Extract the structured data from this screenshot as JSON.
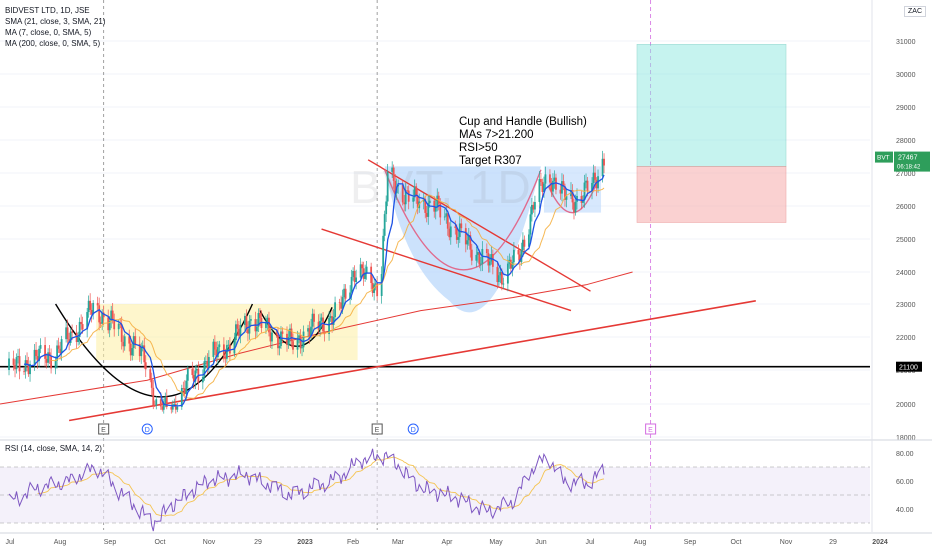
{
  "header": {
    "symbol_line": "BIDVEST LTD, 1D, JSE",
    "currency": "ZAC"
  },
  "indicators": [
    {
      "label": "SMA (21, close, 3, SMA, 21)",
      "color": "#f5b041"
    },
    {
      "label": "MA (7, close, 0, SMA, 5)",
      "color": "#1e53e5"
    },
    {
      "label": "MA (200, close, 0, SMA, 5)",
      "color": "#e53935"
    }
  ],
  "watermark": "BVT, 1D",
  "annotation": {
    "lines": [
      "Cup and Handle (Bullish)",
      "MAs 7>21.200",
      "RSI>50",
      "Target R307"
    ]
  },
  "price_badge": {
    "symbol": "BVT",
    "price": "27467",
    "countdown": "06:18:42"
  },
  "level_badge": "21100",
  "event_markers": [
    {
      "label": "E",
      "kind": "earnings"
    },
    {
      "label": "D",
      "kind": "dividend"
    },
    {
      "label": "E",
      "kind": "earnings"
    },
    {
      "label": "D",
      "kind": "dividend"
    },
    {
      "label": "E",
      "kind": "earnings-future"
    }
  ],
  "rsi_legend": "RSI (14, close, SMA, 14, 2)",
  "colors": {
    "up": "#26a69a",
    "down": "#ef5350",
    "trend": "#e53935",
    "support": "#000000",
    "sma21": "#f5b041",
    "ma7": "#1e53e5",
    "ma200": "#e53935",
    "rsi": "#7e57c2",
    "profit_zone": "#8ee8e0",
    "stop_zone": "#f8b4b4",
    "cup_fill_1": "#fdeea2",
    "cup_fill_2": "#b7d6fb",
    "badge": "#2e9e5b"
  },
  "chart_data": [
    {
      "type": "candlestick",
      "title": "BIDVEST LTD, 1D, JSE",
      "ylim": [
        18000,
        31500
      ],
      "y_ticks": [
        18000,
        20000,
        21000,
        22000,
        23000,
        24000,
        25000,
        26000,
        27000,
        28000,
        29000,
        30000,
        31000
      ],
      "y_tick_labels": [
        "18000",
        "20000",
        "21000",
        "22000",
        "23000",
        "24000",
        "25000",
        "26000",
        "27000",
        "28000",
        "29000",
        "30000",
        "31000"
      ],
      "x_tick_labels": [
        "Jul",
        "Aug",
        "Sep",
        "Oct",
        "Nov",
        "29",
        "2023",
        "Feb",
        "Mar",
        "Apr",
        "May",
        "Jun",
        "Jul",
        "Aug",
        "Sep",
        "Oct",
        "Nov",
        "29",
        "2024"
      ],
      "last_price": 27467,
      "horizontal_level": 21100,
      "close_path": [
        {
          "x": "2022-07-01",
          "y": 21000
        },
        {
          "x": "2022-07-15",
          "y": 21300
        },
        {
          "x": "2022-08-01",
          "y": 21500
        },
        {
          "x": "2022-08-20",
          "y": 22500
        },
        {
          "x": "2022-08-27",
          "y": 22900
        },
        {
          "x": "2022-09-05",
          "y": 22500
        },
        {
          "x": "2022-09-20",
          "y": 21800
        },
        {
          "x": "2022-09-30",
          "y": 21300
        },
        {
          "x": "2022-10-08",
          "y": 19700
        },
        {
          "x": "2022-10-18",
          "y": 19900
        },
        {
          "x": "2022-10-28",
          "y": 20600
        },
        {
          "x": "2022-11-10",
          "y": 21300
        },
        {
          "x": "2022-11-25",
          "y": 21800
        },
        {
          "x": "2022-12-10",
          "y": 22600
        },
        {
          "x": "2022-12-20",
          "y": 22200
        },
        {
          "x": "2023-01-05",
          "y": 21800
        },
        {
          "x": "2023-01-20",
          "y": 22300
        },
        {
          "x": "2023-02-05",
          "y": 22700
        },
        {
          "x": "2023-02-15",
          "y": 24000
        },
        {
          "x": "2023-02-25",
          "y": 23800
        },
        {
          "x": "2023-03-05",
          "y": 23500
        },
        {
          "x": "2023-03-10",
          "y": 26900
        },
        {
          "x": "2023-03-25",
          "y": 26200
        },
        {
          "x": "2023-04-10",
          "y": 26000
        },
        {
          "x": "2023-04-25",
          "y": 25200
        },
        {
          "x": "2023-05-10",
          "y": 24500
        },
        {
          "x": "2023-05-25",
          "y": 23900
        },
        {
          "x": "2023-06-05",
          "y": 24400
        },
        {
          "x": "2023-06-15",
          "y": 26000
        },
        {
          "x": "2023-06-25",
          "y": 27000
        },
        {
          "x": "2023-07-05",
          "y": 26300
        },
        {
          "x": "2023-07-15",
          "y": 26200
        },
        {
          "x": "2023-07-25",
          "y": 26700
        },
        {
          "x": "2023-08-01",
          "y": 27467
        }
      ],
      "series": [
        {
          "name": "SMA (21, close, 3, SMA, 21)"
        },
        {
          "name": "MA (7, close, 0, SMA, 5)"
        },
        {
          "name": "MA (200, close, 0, SMA, 5)"
        }
      ],
      "annotations": [
        "Cup and Handle (Bullish)",
        "MAs 7>21.200",
        "RSI>50",
        "Target R307"
      ]
    },
    {
      "type": "line",
      "title": "RSI (14, close, SMA, 14, 2)",
      "ylim": [
        25,
        85
      ],
      "y_tick_labels": [
        "80.00",
        "60.00",
        "40.00"
      ],
      "bands": [
        70,
        50,
        30
      ],
      "series": [
        {
          "name": "RSI (14, close, SMA, 14, 2)",
          "points": [
            {
              "x": "2022-07-01",
              "y": 45
            },
            {
              "x": "2022-07-20",
              "y": 55
            },
            {
              "x": "2022-08-10",
              "y": 60
            },
            {
              "x": "2022-08-28",
              "y": 70
            },
            {
              "x": "2022-09-15",
              "y": 50
            },
            {
              "x": "2022-10-05",
              "y": 30
            },
            {
              "x": "2022-10-20",
              "y": 45
            },
            {
              "x": "2022-11-10",
              "y": 60
            },
            {
              "x": "2022-12-05",
              "y": 65
            },
            {
              "x": "2023-01-05",
              "y": 50
            },
            {
              "x": "2023-02-05",
              "y": 62
            },
            {
              "x": "2023-02-20",
              "y": 75
            },
            {
              "x": "2023-03-10",
              "y": 78
            },
            {
              "x": "2023-04-01",
              "y": 55
            },
            {
              "x": "2023-04-25",
              "y": 48
            },
            {
              "x": "2023-05-15",
              "y": 38
            },
            {
              "x": "2023-06-01",
              "y": 45
            },
            {
              "x": "2023-06-15",
              "y": 70
            },
            {
              "x": "2023-06-25",
              "y": 77
            },
            {
              "x": "2023-07-05",
              "y": 60
            },
            {
              "x": "2023-07-20",
              "y": 58
            },
            {
              "x": "2023-08-01",
              "y": 67
            }
          ]
        }
      ]
    }
  ]
}
